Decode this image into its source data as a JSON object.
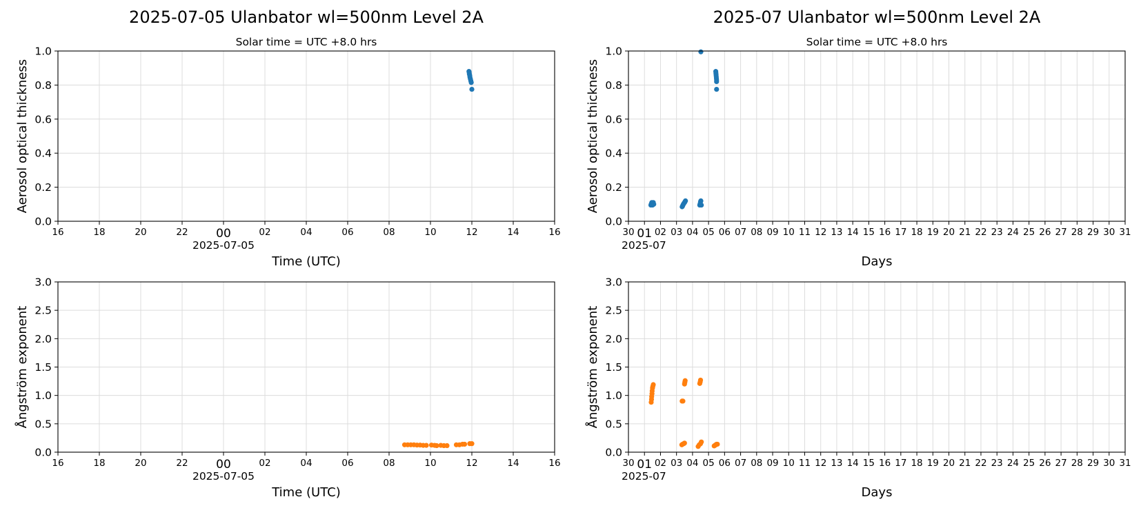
{
  "colors": {
    "aod": "#1f77b4",
    "angstrom": "#ff7f0e",
    "grid": "#dcdcdc"
  },
  "chart_data": [
    {
      "id": "daily-aod",
      "type": "scatter",
      "title": "2025-07-05  Ulanbator  wl=500nm  Level 2A",
      "subtitle": "Solar time = UTC +8.0 hrs",
      "xlabel": "Time (UTC)",
      "ylabel": "Aerosol optical thickness",
      "x_unit": "hours relative to 2025-07-05 00:00 UTC",
      "xlim": [
        -8,
        16
      ],
      "ylim": [
        0,
        1.0
      ],
      "yticks": [
        "0.0",
        "0.2",
        "0.4",
        "0.6",
        "0.8",
        "1.0"
      ],
      "xticks": [
        "16",
        "18",
        "20",
        "22",
        "00",
        "02",
        "04",
        "06",
        "08",
        "10",
        "12",
        "14",
        "16"
      ],
      "x_offset_label": "2025-07-05",
      "grid": true,
      "series": [
        {
          "color": "#1f77b4",
          "points": [
            [
              11.86,
              0.88
            ],
            [
              11.87,
              0.875
            ],
            [
              11.88,
              0.865
            ],
            [
              11.9,
              0.855
            ],
            [
              11.91,
              0.845
            ],
            [
              11.93,
              0.835
            ],
            [
              11.95,
              0.825
            ],
            [
              11.97,
              0.815
            ],
            [
              12.0,
              0.775
            ]
          ]
        }
      ]
    },
    {
      "id": "monthly-aod",
      "type": "scatter",
      "title": "2025-07  Ulanbator  wl=500nm  Level 2A",
      "subtitle": "Solar time = UTC +8.0 hrs",
      "xlabel": "Days",
      "ylabel": "Aerosol optical thickness",
      "x_unit": "day of month, 2025-07",
      "xlim": [
        0,
        31
      ],
      "ylim": [
        0,
        1.0
      ],
      "yticks": [
        "0.0",
        "0.2",
        "0.4",
        "0.6",
        "0.8",
        "1.0"
      ],
      "xticks": [
        "30",
        "01",
        "02",
        "03",
        "04",
        "05",
        "06",
        "07",
        "08",
        "09",
        "10",
        "11",
        "12",
        "13",
        "14",
        "15",
        "16",
        "17",
        "18",
        "19",
        "20",
        "21",
        "22",
        "23",
        "24",
        "25",
        "26",
        "27",
        "28",
        "29",
        "30",
        "31"
      ],
      "x_offset_label": "2025-07",
      "grid": true,
      "series": [
        {
          "color": "#1f77b4",
          "points": [
            [
              1.4,
              0.095
            ],
            [
              1.42,
              0.1
            ],
            [
              1.44,
              0.105
            ],
            [
              1.46,
              0.11
            ],
            [
              1.48,
              0.1
            ],
            [
              1.5,
              0.095
            ],
            [
              1.52,
              0.105
            ],
            [
              1.55,
              0.11
            ],
            [
              1.58,
              0.1
            ],
            [
              3.35,
              0.085
            ],
            [
              3.38,
              0.09
            ],
            [
              3.4,
              0.095
            ],
            [
              3.43,
              0.1
            ],
            [
              3.46,
              0.105
            ],
            [
              3.5,
              0.11
            ],
            [
              3.53,
              0.115
            ],
            [
              3.56,
              0.12
            ],
            [
              4.45,
              0.095
            ],
            [
              4.47,
              0.1
            ],
            [
              4.48,
              0.105
            ],
            [
              4.5,
              0.115
            ],
            [
              4.52,
              0.12
            ],
            [
              4.55,
              0.095
            ],
            [
              4.52,
              0.995
            ],
            [
              5.45,
              0.88
            ],
            [
              5.46,
              0.87
            ],
            [
              5.47,
              0.86
            ],
            [
              5.48,
              0.85
            ],
            [
              5.49,
              0.84
            ],
            [
              5.5,
              0.83
            ],
            [
              5.5,
              0.82
            ],
            [
              5.5,
              0.775
            ]
          ]
        }
      ]
    },
    {
      "id": "daily-angstrom",
      "type": "scatter",
      "xlabel": "Time (UTC)",
      "ylabel": "Ångström exponent",
      "x_unit": "hours relative to 2025-07-05 00:00 UTC",
      "xlim": [
        -8,
        16
      ],
      "ylim": [
        0,
        3.0
      ],
      "yticks": [
        "0.0",
        "0.5",
        "1.0",
        "1.5",
        "2.0",
        "2.5",
        "3.0"
      ],
      "xticks": [
        "16",
        "18",
        "20",
        "22",
        "00",
        "02",
        "04",
        "06",
        "08",
        "10",
        "12",
        "14",
        "16"
      ],
      "x_offset_label": "2025-07-05",
      "grid": true,
      "series": [
        {
          "color": "#ff7f0e",
          "points": [
            [
              8.75,
              0.13
            ],
            [
              8.9,
              0.13
            ],
            [
              9.05,
              0.13
            ],
            [
              9.2,
              0.13
            ],
            [
              9.35,
              0.125
            ],
            [
              9.5,
              0.125
            ],
            [
              9.65,
              0.12
            ],
            [
              9.8,
              0.12
            ],
            [
              10.05,
              0.125
            ],
            [
              10.2,
              0.12
            ],
            [
              10.3,
              0.115
            ],
            [
              10.5,
              0.12
            ],
            [
              10.65,
              0.115
            ],
            [
              10.8,
              0.115
            ],
            [
              11.25,
              0.13
            ],
            [
              11.4,
              0.13
            ],
            [
              11.55,
              0.14
            ],
            [
              11.65,
              0.14
            ],
            [
              11.9,
              0.15
            ],
            [
              12.0,
              0.15
            ]
          ]
        }
      ]
    },
    {
      "id": "monthly-angstrom",
      "type": "scatter",
      "xlabel": "Days",
      "ylabel": "Ångström exponent",
      "x_unit": "day of month, 2025-07",
      "xlim": [
        0,
        31
      ],
      "ylim": [
        0,
        3.0
      ],
      "yticks": [
        "0.0",
        "0.5",
        "1.0",
        "1.5",
        "2.0",
        "2.5",
        "3.0"
      ],
      "xticks": [
        "30",
        "01",
        "02",
        "03",
        "04",
        "05",
        "06",
        "07",
        "08",
        "09",
        "10",
        "11",
        "12",
        "13",
        "14",
        "15",
        "16",
        "17",
        "18",
        "19",
        "20",
        "21",
        "22",
        "23",
        "24",
        "25",
        "26",
        "27",
        "28",
        "29",
        "30",
        "31"
      ],
      "x_offset_label": "2025-07",
      "grid": true,
      "series": [
        {
          "color": "#ff7f0e",
          "points": [
            [
              1.42,
              0.88
            ],
            [
              1.44,
              0.93
            ],
            [
              1.45,
              0.98
            ],
            [
              1.47,
              1.03
            ],
            [
              1.48,
              1.08
            ],
            [
              1.5,
              1.13
            ],
            [
              1.52,
              1.16
            ],
            [
              1.55,
              1.19
            ],
            [
              3.35,
              0.9
            ],
            [
              3.4,
              0.9
            ],
            [
              3.5,
              1.2
            ],
            [
              3.52,
              1.23
            ],
            [
              3.54,
              1.26
            ],
            [
              3.33,
              0.13
            ],
            [
              3.38,
              0.14
            ],
            [
              3.45,
              0.15
            ],
            [
              3.5,
              0.16
            ],
            [
              4.45,
              1.21
            ],
            [
              4.48,
              1.24
            ],
            [
              4.5,
              1.27
            ],
            [
              4.35,
              0.1
            ],
            [
              4.42,
              0.13
            ],
            [
              4.5,
              0.15
            ],
            [
              4.55,
              0.18
            ],
            [
              5.35,
              0.11
            ],
            [
              5.4,
              0.12
            ],
            [
              5.45,
              0.13
            ],
            [
              5.5,
              0.14
            ],
            [
              5.55,
              0.14
            ]
          ]
        }
      ]
    }
  ]
}
